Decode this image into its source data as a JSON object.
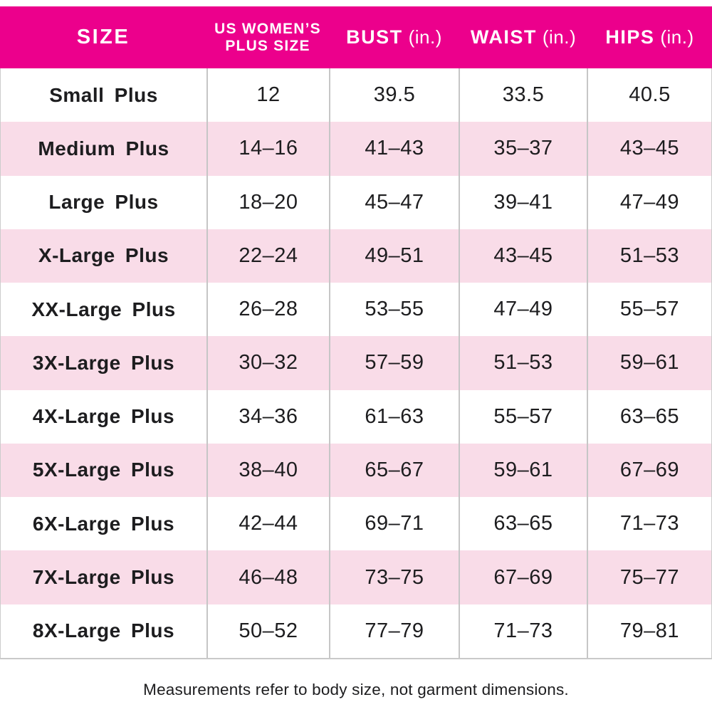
{
  "colors": {
    "header_bg": "#EC008C",
    "header_text": "#FFFFFF",
    "row_alt_bg": "#F9DCE8",
    "row_bg": "#FFFFFF",
    "text": "#1D1D1F",
    "divider": "#C6C6C6"
  },
  "header": {
    "columns": [
      {
        "text": "SIZE"
      },
      {
        "line1": "US WOMEN’S",
        "line2": "PLUS SIZE"
      },
      {
        "text": "BUST",
        "unit": "(in.)"
      },
      {
        "text": "WAIST",
        "unit": "(in.)"
      },
      {
        "text": "HIPS",
        "unit": "(in.)"
      }
    ]
  },
  "chart_data": {
    "type": "table",
    "columns": [
      "SIZE",
      "US WOMEN'S PLUS SIZE",
      "BUST (in.)",
      "WAIST (in.)",
      "HIPS (in.)"
    ],
    "rows": [
      {
        "size": "Small Plus",
        "us_plus_size": "12",
        "bust": "39.5",
        "waist": "33.5",
        "hips": "40.5"
      },
      {
        "size": "Medium Plus",
        "us_plus_size": "14–16",
        "bust": "41–43",
        "waist": "35–37",
        "hips": "43–45"
      },
      {
        "size": "Large Plus",
        "us_plus_size": "18–20",
        "bust": "45–47",
        "waist": "39–41",
        "hips": "47–49"
      },
      {
        "size": "X-Large Plus",
        "us_plus_size": "22–24",
        "bust": "49–51",
        "waist": "43–45",
        "hips": "51–53"
      },
      {
        "size": "XX-Large Plus",
        "us_plus_size": "26–28",
        "bust": "53–55",
        "waist": "47–49",
        "hips": "55–57"
      },
      {
        "size": "3X-Large Plus",
        "us_plus_size": "30–32",
        "bust": "57–59",
        "waist": "51–53",
        "hips": "59–61"
      },
      {
        "size": "4X-Large Plus",
        "us_plus_size": "34–36",
        "bust": "61–63",
        "waist": "55–57",
        "hips": "63–65"
      },
      {
        "size": "5X-Large Plus",
        "us_plus_size": "38–40",
        "bust": "65–67",
        "waist": "59–61",
        "hips": "67–69"
      },
      {
        "size": "6X-Large Plus",
        "us_plus_size": "42–44",
        "bust": "69–71",
        "waist": "63–65",
        "hips": "71–73"
      },
      {
        "size": "7X-Large Plus",
        "us_plus_size": "46–48",
        "bust": "73–75",
        "waist": "67–69",
        "hips": "75–77"
      },
      {
        "size": "8X-Large Plus",
        "us_plus_size": "50–52",
        "bust": "77–79",
        "waist": "71–73",
        "hips": "79–81"
      }
    ]
  },
  "footer": {
    "note": "Measurements refer to body size, not garment dimensions."
  }
}
